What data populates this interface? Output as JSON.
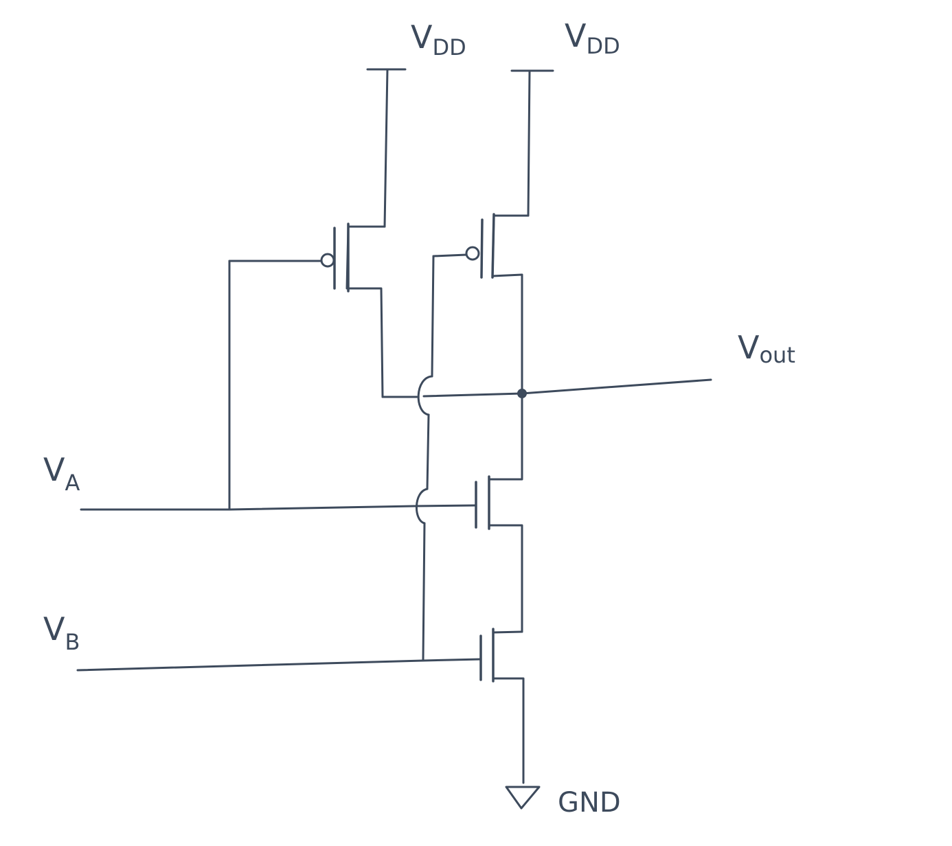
{
  "colors": {
    "ink": "#3d4a5c",
    "background": "#ffffff"
  },
  "labels": {
    "vdd_left": {
      "main": "V",
      "sub": "DD"
    },
    "vdd_right": {
      "main": "V",
      "sub": "DD"
    },
    "vout": {
      "main": "V",
      "sub": "out"
    },
    "va": {
      "main": "V",
      "sub": "A"
    },
    "vb": {
      "main": "V",
      "sub": "B"
    },
    "gnd": "GND"
  },
  "components": {
    "pmos": [
      "pmos-a",
      "pmos-b"
    ],
    "nmos": [
      "nmos-a",
      "nmos-b"
    ],
    "ground_symbol": "ground-triangle-icon",
    "output_node": "junction-dot"
  }
}
